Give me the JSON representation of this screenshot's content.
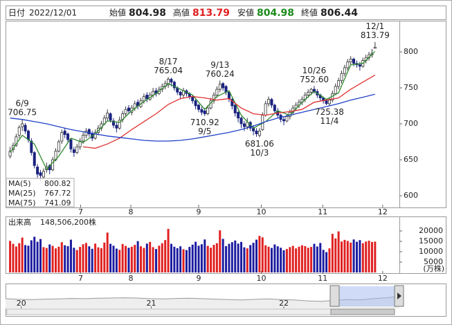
{
  "header": {
    "date_label": "日付",
    "date": "2022/12/01",
    "open_label": "始値",
    "open": 804.98,
    "high_label": "高値",
    "high": 813.79,
    "low_label": "安値",
    "low": 804.98,
    "close_label": "終値",
    "close": 806.44
  },
  "chart_data": [
    {
      "type": "candlestick",
      "up_color": "#ffffff",
      "down_color": "#1a237e",
      "xlim": [
        -1.5,
        128
      ],
      "ylim": [
        583.7,
        843.3
      ],
      "yticks": [
        600,
        650,
        700,
        750,
        800
      ],
      "xticks": [
        {
          "value": 23.2,
          "label": "7"
        },
        {
          "value": 39.7,
          "label": "8"
        },
        {
          "value": 62,
          "label": "9"
        },
        {
          "value": 82.6,
          "label": "10"
        },
        {
          "value": 102.8,
          "label": "11"
        },
        {
          "value": 122.5,
          "label": "12"
        }
      ],
      "candles": [
        [
          655,
          668,
          652,
          662
        ],
        [
          664,
          674,
          660,
          670
        ],
        [
          670,
          686,
          668,
          682
        ],
        [
          684,
          698,
          680,
          695
        ],
        [
          696,
          706.75,
          690,
          700
        ],
        [
          698,
          701,
          686,
          690
        ],
        [
          690,
          692,
          674,
          678
        ],
        [
          676,
          680,
          656,
          660
        ],
        [
          660,
          662,
          638,
          642
        ],
        [
          640,
          644,
          625,
          630
        ],
        [
          632,
          636,
          620,
          628
        ],
        [
          626,
          638,
          624,
          634
        ],
        [
          636,
          646,
          632,
          640
        ],
        [
          642,
          644,
          630,
          636
        ],
        [
          636,
          654,
          634,
          650
        ],
        [
          650,
          666,
          648,
          662
        ],
        [
          662,
          678,
          660,
          675
        ],
        [
          676,
          692,
          672,
          688
        ],
        [
          690,
          694,
          680,
          685
        ],
        [
          686,
          688,
          674,
          678
        ],
        [
          678,
          680,
          660,
          665
        ],
        [
          664,
          668,
          654,
          660
        ],
        [
          660,
          672,
          658,
          668
        ],
        [
          668,
          680,
          664,
          676
        ],
        [
          676,
          688,
          672,
          684
        ],
        [
          684,
          694,
          680,
          690
        ],
        [
          692,
          694,
          682,
          686
        ],
        [
          686,
          690,
          676,
          680
        ],
        [
          680,
          692,
          678,
          688
        ],
        [
          688,
          698,
          684,
          694
        ],
        [
          694,
          704,
          690,
          700
        ],
        [
          700,
          712,
          698,
          708
        ],
        [
          708,
          720,
          704,
          715
        ],
        [
          714,
          716,
          702,
          705
        ],
        [
          704,
          708,
          694,
          698
        ],
        [
          698,
          702,
          688,
          694
        ],
        [
          694,
          710,
          692,
          705
        ],
        [
          706,
          718,
          702,
          714
        ],
        [
          714,
          724,
          710,
          720
        ],
        [
          722,
          726,
          714,
          718
        ],
        [
          716,
          726,
          712,
          722
        ],
        [
          722,
          732,
          718,
          728
        ],
        [
          730,
          734,
          720,
          725
        ],
        [
          724,
          736,
          722,
          732
        ],
        [
          732,
          742,
          728,
          738
        ],
        [
          740,
          744,
          730,
          735
        ],
        [
          734,
          744,
          732,
          740
        ],
        [
          740,
          750,
          736,
          745
        ],
        [
          746,
          750,
          738,
          742
        ],
        [
          742,
          752,
          740,
          748
        ],
        [
          748,
          756,
          744,
          752
        ],
        [
          752,
          760,
          748,
          756
        ],
        [
          754,
          765.04,
          750,
          762
        ],
        [
          762,
          764,
          752,
          758
        ],
        [
          758,
          760,
          746,
          750
        ],
        [
          750,
          752,
          740,
          744
        ],
        [
          744,
          746,
          734,
          740
        ],
        [
          740,
          750,
          736,
          746
        ],
        [
          746,
          748,
          738,
          742
        ],
        [
          742,
          744,
          734,
          738
        ],
        [
          738,
          740,
          728,
          732
        ],
        [
          732,
          734,
          720,
          725
        ],
        [
          726,
          728,
          716,
          720
        ],
        [
          720,
          724,
          712,
          716
        ],
        [
          718,
          722,
          710.92,
          714
        ],
        [
          714,
          726,
          712,
          722
        ],
        [
          722,
          736,
          720,
          732
        ],
        [
          732,
          744,
          728,
          740
        ],
        [
          740,
          752,
          736,
          748
        ],
        [
          748,
          760.24,
          744,
          755
        ],
        [
          756,
          758,
          746,
          750
        ],
        [
          752,
          754,
          740,
          744
        ],
        [
          744,
          746,
          730,
          735
        ],
        [
          734,
          736,
          720,
          725
        ],
        [
          726,
          728,
          710,
          715
        ],
        [
          716,
          718,
          702,
          708
        ],
        [
          708,
          710,
          694,
          700
        ],
        [
          700,
          704,
          690,
          696
        ],
        [
          696,
          708,
          692,
          702
        ],
        [
          702,
          704,
          690,
          694
        ],
        [
          694,
          698,
          684,
          690
        ],
        [
          690,
          694,
          682,
          686
        ],
        [
          684,
          694,
          681.06,
          690
        ],
        [
          692,
          716,
          690,
          712
        ],
        [
          712,
          732,
          710,
          728
        ],
        [
          728,
          738,
          724,
          734
        ],
        [
          734,
          736,
          722,
          726
        ],
        [
          726,
          728,
          714,
          718
        ],
        [
          718,
          722,
          708,
          712
        ],
        [
          712,
          714,
          702,
          706
        ],
        [
          706,
          710,
          698,
          704
        ],
        [
          704,
          714,
          702,
          710
        ],
        [
          710,
          720,
          706,
          716
        ],
        [
          716,
          726,
          712,
          722
        ],
        [
          722,
          730,
          718,
          726
        ],
        [
          726,
          734,
          722,
          730
        ],
        [
          730,
          738,
          726,
          734
        ],
        [
          734,
          744,
          730,
          740
        ],
        [
          740,
          748,
          736,
          744
        ],
        [
          744,
          750,
          740,
          748
        ],
        [
          748,
          752.6,
          742,
          745
        ],
        [
          745,
          748,
          736,
          740
        ],
        [
          740,
          742,
          732,
          736
        ],
        [
          736,
          738,
          728,
          732
        ],
        [
          732,
          734,
          726,
          728
        ],
        [
          728,
          736,
          725.38,
          733
        ],
        [
          733,
          746,
          730,
          742
        ],
        [
          742,
          756,
          740,
          752
        ],
        [
          752,
          764,
          748,
          760
        ],
        [
          760,
          774,
          756,
          770
        ],
        [
          770,
          782,
          766,
          778
        ],
        [
          778,
          790,
          774,
          786
        ],
        [
          786,
          794,
          782,
          790
        ],
        [
          790,
          792,
          780,
          784
        ],
        [
          784,
          788,
          778,
          782
        ],
        [
          782,
          786,
          774,
          780
        ],
        [
          780,
          792,
          778,
          788
        ],
        [
          788,
          796,
          784,
          792
        ],
        [
          792,
          800,
          788,
          796
        ],
        [
          796,
          804,
          792,
          798
        ],
        [
          804.98,
          813.79,
          804.98,
          806.44
        ]
      ],
      "x": [
        0,
        4,
        8,
        12,
        16,
        20,
        24,
        28,
        32,
        36,
        40,
        44,
        48,
        52,
        56,
        60,
        64,
        68,
        72,
        76,
        80,
        84,
        88,
        92,
        96,
        100,
        104,
        108,
        112,
        116,
        120
      ],
      "series": [
        {
          "name": "MA(5)",
          "color": "#2e8b2e",
          "values": [
            660,
            684,
            672,
            637,
            655,
            680,
            674,
            686,
            704,
            702,
            718,
            731,
            742,
            756,
            748,
            740,
            720,
            738,
            746,
            712,
            694,
            703,
            718,
            712,
            730,
            745,
            734,
            743,
            782,
            784,
            800.82
          ]
        },
        {
          "name": "MA(25)",
          "color": "#e03030",
          "values": [
            null,
            null,
            null,
            null,
            null,
            null,
            668,
            666,
            672,
            680,
            692,
            703,
            714,
            727,
            735,
            738,
            736,
            733,
            735,
            722,
            714,
            712,
            715,
            717,
            720,
            730,
            733,
            736,
            748,
            758,
            767.72
          ]
        },
        {
          "name": "MA(75)",
          "color": "#2040c8",
          "values": [
            708,
            706,
            703,
            700,
            696,
            692,
            689,
            686,
            683,
            681,
            679,
            677,
            676,
            676,
            677,
            679,
            682,
            685,
            688,
            692,
            697,
            703,
            708,
            712,
            716,
            720,
            724,
            728,
            733,
            737,
            741.09
          ]
        }
      ],
      "annotations": [
        {
          "date": "6/9",
          "value": 706.75
        },
        {
          "date": "8/17",
          "value": 765.04
        },
        {
          "date": "9/5",
          "value": 710.92
        },
        {
          "date": "9/13",
          "value": 760.24
        },
        {
          "date": "10/3",
          "value": 681.06
        },
        {
          "date": "10/26",
          "value": 752.6,
          "value_label": "752.60"
        },
        {
          "date": "11/4",
          "value": 725.38
        },
        {
          "date": "12/1",
          "value": 813.79
        }
      ]
    },
    {
      "type": "bar",
      "title": "出来高",
      "total": "148,506,200株",
      "unit": "(万株)",
      "up_color": "#e02020",
      "down_color": "#1c1ca0",
      "xlim": [
        -1.5,
        128
      ],
      "ylim": [
        0,
        26667
      ],
      "yticks": [
        5000,
        10000,
        15000,
        20000
      ],
      "xticks": [
        {
          "value": 23.2,
          "label": "7"
        },
        {
          "value": 39.7,
          "label": "8"
        },
        {
          "value": 62,
          "label": "9"
        },
        {
          "value": 82.6,
          "label": "10"
        },
        {
          "value": 102.8,
          "label": "11"
        },
        {
          "value": 122.5,
          "label": "12"
        }
      ],
      "values": [
        15200,
        13800,
        12500,
        14100,
        16800,
        13200,
        12900,
        15500,
        17200,
        14800,
        16100,
        12200,
        11800,
        13500,
        12800,
        11600,
        12400,
        14600,
        13100,
        12700,
        15800,
        11900,
        10800,
        12300,
        13600,
        14200,
        12600,
        11400,
        13900,
        12100,
        11700,
        14400,
        19200,
        13800,
        12900,
        11500,
        10900,
        13700,
        12800,
        11900,
        12400,
        13300,
        15100,
        12600,
        11800,
        13900,
        14700,
        12200,
        11300,
        12900,
        14100,
        15600,
        21000,
        13800,
        12400,
        11700,
        12600,
        11200,
        10800,
        12300,
        13400,
        14800,
        12900,
        13600,
        15900,
        12800,
        11900,
        13300,
        14100,
        20300,
        16200,
        12700,
        13800,
        14600,
        15400,
        13900,
        14700,
        12100,
        11600,
        13200,
        14300,
        15800,
        17600,
        16900,
        13100,
        12400,
        11800,
        13500,
        12600,
        11900,
        10700,
        11300,
        12200,
        12800,
        11600,
        12400,
        13100,
        12700,
        11900,
        12300,
        13800,
        12500,
        14200,
        10900,
        9800,
        11600,
        18600,
        16400,
        19800,
        14900,
        15700,
        15200,
        14400,
        15900,
        14800,
        15600,
        14100,
        14900,
        15300,
        14700,
        14850.62
      ]
    },
    {
      "type": "area",
      "color": "#999999",
      "xlim": [
        0,
        30
      ],
      "ylim": [
        500,
        1000
      ],
      "xticks": [
        {
          "value": 1.2,
          "label": "20"
        },
        {
          "value": 11.1,
          "label": "21"
        },
        {
          "value": 21.2,
          "label": "22"
        }
      ],
      "values": [
        720,
        705,
        700,
        710,
        715,
        725,
        720,
        730,
        735,
        740,
        735,
        720,
        715,
        725,
        730,
        720,
        710,
        700,
        690,
        705,
        715,
        700,
        690,
        670,
        660,
        680,
        700,
        690,
        720,
        740,
        770
      ]
    }
  ]
}
